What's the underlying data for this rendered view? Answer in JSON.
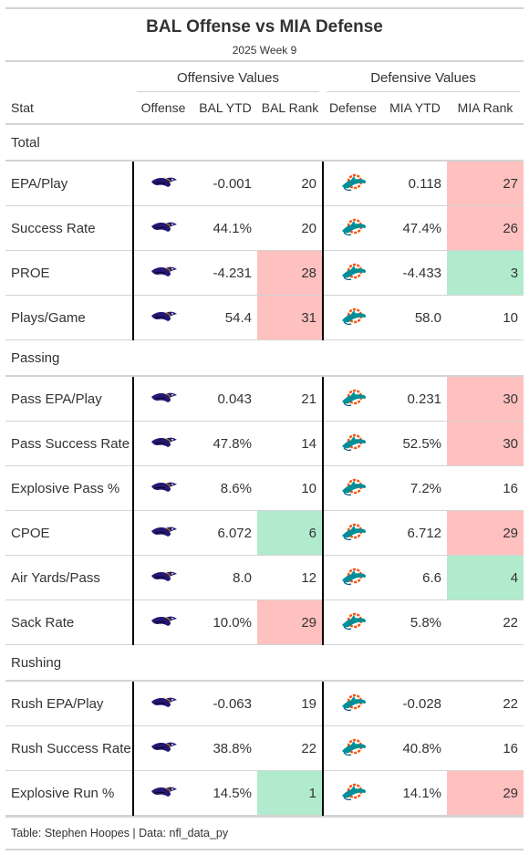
{
  "header": {
    "title": "BAL Offense vs MIA Defense",
    "subtitle": "2025 Week 9"
  },
  "spanners": {
    "offensive": "Offensive Values",
    "defensive": "Defensive Values"
  },
  "columns": [
    "Stat",
    "Offense",
    "BAL YTD",
    "BAL Rank",
    "Defense",
    "MIA YTD",
    "MIA Rank"
  ],
  "colors": {
    "good": "#b1ebcd",
    "bad": "#ffc0c0",
    "ravens_purple": "#241773",
    "dolphins_aqua": "#008e97",
    "dolphins_orange": "#fc4c02"
  },
  "groups": [
    {
      "name": "Total",
      "rows": [
        {
          "stat": "EPA/Play",
          "bal_ytd": "-0.001",
          "bal_rank": "20",
          "bal_rank_color": "",
          "mia_ytd": "0.118",
          "mia_rank": "27",
          "mia_rank_color": "bad"
        },
        {
          "stat": "Success Rate",
          "bal_ytd": "44.1%",
          "bal_rank": "20",
          "bal_rank_color": "",
          "mia_ytd": "47.4%",
          "mia_rank": "26",
          "mia_rank_color": "bad"
        },
        {
          "stat": "PROE",
          "bal_ytd": "-4.231",
          "bal_rank": "28",
          "bal_rank_color": "bad",
          "mia_ytd": "-4.433",
          "mia_rank": "3",
          "mia_rank_color": "good"
        },
        {
          "stat": "Plays/Game",
          "bal_ytd": "54.4",
          "bal_rank": "31",
          "bal_rank_color": "bad",
          "mia_ytd": "58.0",
          "mia_rank": "10",
          "mia_rank_color": ""
        }
      ]
    },
    {
      "name": "Passing",
      "rows": [
        {
          "stat": "Pass EPA/Play",
          "bal_ytd": "0.043",
          "bal_rank": "21",
          "bal_rank_color": "",
          "mia_ytd": "0.231",
          "mia_rank": "30",
          "mia_rank_color": "bad"
        },
        {
          "stat": "Pass Success Rate",
          "bal_ytd": "47.8%",
          "bal_rank": "14",
          "bal_rank_color": "",
          "mia_ytd": "52.5%",
          "mia_rank": "30",
          "mia_rank_color": "bad"
        },
        {
          "stat": "Explosive Pass %",
          "bal_ytd": "8.6%",
          "bal_rank": "10",
          "bal_rank_color": "",
          "mia_ytd": "7.2%",
          "mia_rank": "16",
          "mia_rank_color": ""
        },
        {
          "stat": "CPOE",
          "bal_ytd": "6.072",
          "bal_rank": "6",
          "bal_rank_color": "good",
          "mia_ytd": "6.712",
          "mia_rank": "29",
          "mia_rank_color": "bad"
        },
        {
          "stat": "Air Yards/Pass",
          "bal_ytd": "8.0",
          "bal_rank": "12",
          "bal_rank_color": "",
          "mia_ytd": "6.6",
          "mia_rank": "4",
          "mia_rank_color": "good"
        },
        {
          "stat": "Sack Rate",
          "bal_ytd": "10.0%",
          "bal_rank": "29",
          "bal_rank_color": "bad",
          "mia_ytd": "5.8%",
          "mia_rank": "22",
          "mia_rank_color": ""
        }
      ]
    },
    {
      "name": "Rushing",
      "rows": [
        {
          "stat": "Rush EPA/Play",
          "bal_ytd": "-0.063",
          "bal_rank": "19",
          "bal_rank_color": "",
          "mia_ytd": "-0.028",
          "mia_rank": "22",
          "mia_rank_color": ""
        },
        {
          "stat": "Rush Success Rate",
          "bal_ytd": "38.8%",
          "bal_rank": "22",
          "bal_rank_color": "",
          "mia_ytd": "40.8%",
          "mia_rank": "16",
          "mia_rank_color": ""
        },
        {
          "stat": "Explosive Run %",
          "bal_ytd": "14.5%",
          "bal_rank": "1",
          "bal_rank_color": "good",
          "mia_ytd": "14.1%",
          "mia_rank": "29",
          "mia_rank_color": "bad"
        }
      ]
    }
  ],
  "icons": {
    "offense": "ravens-logo-icon",
    "defense": "dolphins-logo-icon"
  },
  "footer": "Table: Stephen Hoopes | Data: nfl_data_py"
}
